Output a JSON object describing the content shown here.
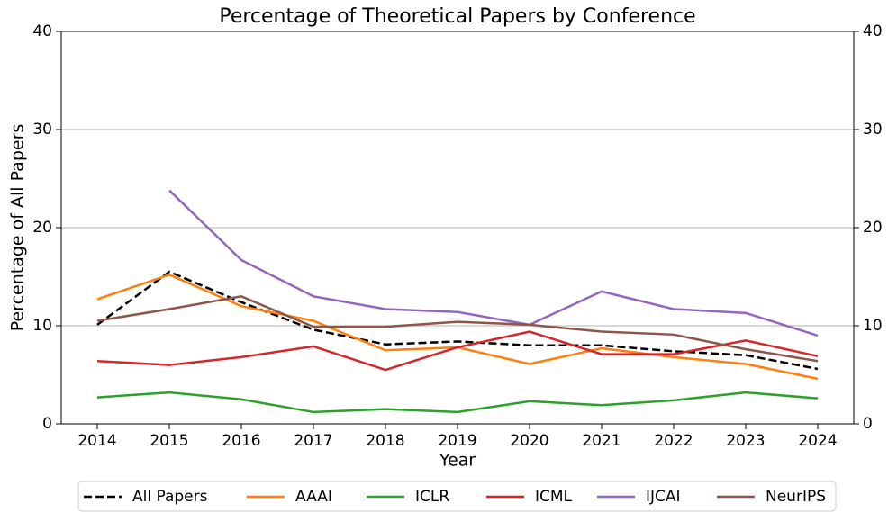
{
  "chart_data": {
    "type": "line",
    "title": "Percentage of Theoretical Papers by Conference",
    "xlabel": "Year",
    "ylabel": "Percentage of All Papers",
    "x": [
      2014,
      2015,
      2016,
      2017,
      2018,
      2019,
      2020,
      2021,
      2022,
      2023,
      2024
    ],
    "xlim": [
      2013.5,
      2024.5
    ],
    "xticks": [
      2014,
      2015,
      2016,
      2017,
      2018,
      2019,
      2020,
      2021,
      2022,
      2023,
      2024
    ],
    "ylim": [
      0,
      40
    ],
    "yticks": [
      0,
      10,
      20,
      30,
      40
    ],
    "y2lim": [
      0,
      40
    ],
    "y2ticks": [
      0,
      10,
      20,
      30,
      40
    ],
    "grid": true,
    "legend": "below",
    "series": [
      {
        "name": "All Papers",
        "color": "#000000",
        "linestyle": "dashed",
        "values": [
          10.1,
          15.5,
          12.4,
          9.6,
          8.1,
          8.4,
          8.0,
          8.0,
          7.4,
          7.0,
          5.6
        ]
      },
      {
        "name": "AAAI",
        "color": "#ff7f0e",
        "values": [
          12.7,
          15.2,
          12.0,
          10.5,
          7.5,
          7.8,
          6.1,
          7.7,
          6.8,
          6.1,
          4.6
        ]
      },
      {
        "name": "ICLR",
        "color": "#2ca02c",
        "values": [
          2.7,
          3.2,
          2.5,
          1.2,
          1.5,
          1.2,
          2.3,
          1.9,
          2.4,
          3.2,
          2.6
        ]
      },
      {
        "name": "ICML",
        "color": "#d62728",
        "values": [
          6.4,
          6.0,
          6.8,
          7.9,
          5.5,
          7.8,
          9.4,
          7.1,
          7.1,
          8.5,
          6.9
        ]
      },
      {
        "name": "IJCAI",
        "color": "#9467bd",
        "values": [
          null,
          23.8,
          16.7,
          13.0,
          11.7,
          11.4,
          10.1,
          13.5,
          11.7,
          11.3,
          9.0
        ]
      },
      {
        "name": "NeurIPS",
        "color": "#8c564b",
        "values": [
          10.5,
          11.7,
          13.0,
          9.9,
          9.9,
          10.4,
          10.1,
          9.4,
          9.1,
          7.6,
          6.4
        ]
      }
    ]
  }
}
